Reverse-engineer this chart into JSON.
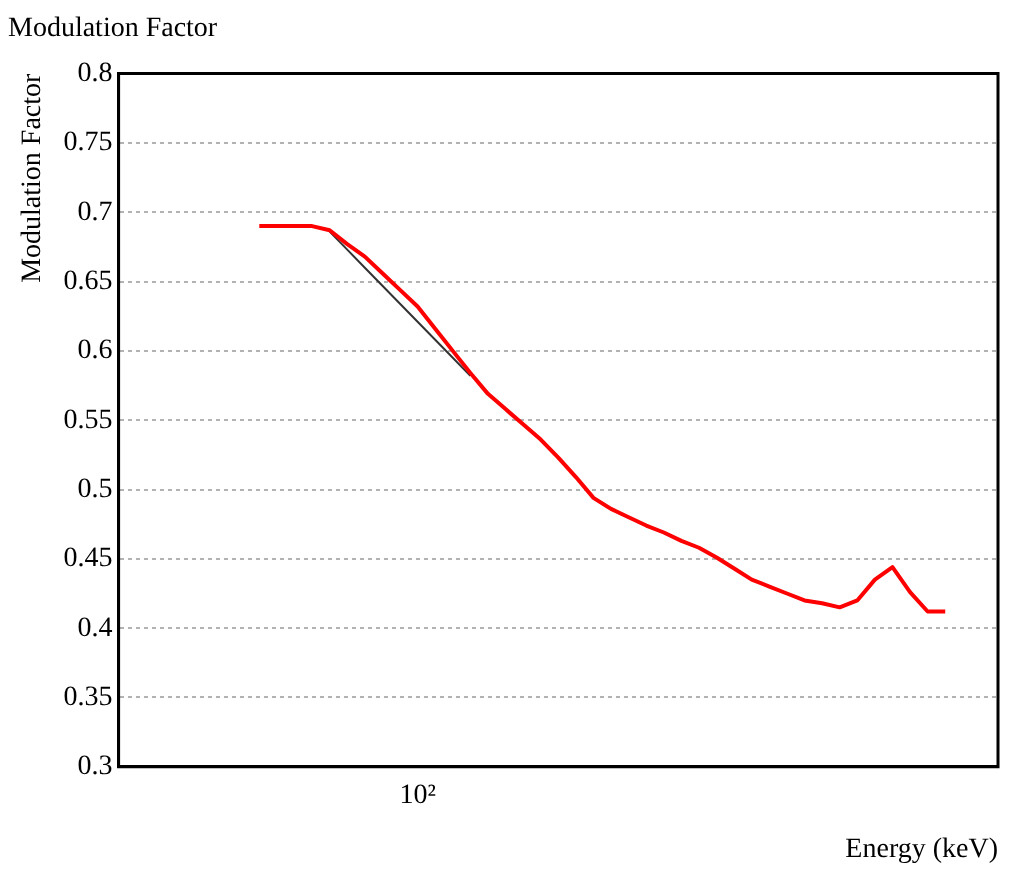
{
  "chart_data": {
    "type": "line",
    "title": "Modulation Factor",
    "ylabel": "Modulation Factor",
    "xlabel": "Energy (keV)",
    "grid": "y",
    "line_style": "solid",
    "marker": "none",
    "legend": false,
    "ylim": [
      0.3,
      0.8
    ],
    "yticks": [
      0.3,
      0.35,
      0.4,
      0.45,
      0.5,
      0.55,
      0.6,
      0.65,
      0.7,
      0.75,
      0.8
    ],
    "categories": [
      null,
      null,
      null,
      null,
      null,
      null,
      null,
      null,
      null,
      null,
      null,
      null,
      null,
      null,
      null,
      null,
      null,
      "10²",
      null,
      null,
      null,
      null,
      null,
      null,
      null,
      null,
      null,
      null,
      null,
      null,
      null,
      null,
      null,
      null,
      null,
      null,
      null,
      null,
      null,
      null,
      null,
      null,
      null,
      null,
      null,
      null,
      null,
      null,
      null,
      null,
      null
    ],
    "series": [
      {
        "color": "#ff0000",
        "values": [
          null,
          null,
          null,
          null,
          null,
          null,
          null,
          null,
          0.69,
          0.69,
          0.69,
          0.69,
          0.687,
          0.677,
          0.668,
          0.656,
          0.644,
          0.632,
          0.616,
          0.6,
          0.584,
          0.569,
          0.558,
          0.547,
          0.536,
          0.523,
          0.509,
          0.494,
          0.486,
          0.48,
          0.474,
          0.469,
          0.463,
          0.458,
          0.451,
          0.443,
          0.435,
          0.43,
          0.425,
          0.42,
          0.418,
          0.415,
          0.42,
          0.435,
          0.444,
          0.426,
          0.412,
          0.412,
          null,
          null,
          null
        ]
      },
      {
        "color": "#333333",
        "values": [
          null,
          null,
          null,
          null,
          null,
          null,
          null,
          null,
          null,
          null,
          null,
          null,
          0.686,
          0.673,
          0.66,
          0.647,
          0.634,
          0.621,
          0.608,
          0.595,
          0.582,
          null,
          null,
          null,
          null,
          null,
          null,
          null,
          null,
          null,
          null,
          null,
          null,
          null,
          null,
          null,
          null,
          null,
          null,
          null,
          null,
          null,
          null,
          null,
          null,
          null,
          null,
          null,
          null,
          null,
          null
        ]
      }
    ]
  }
}
